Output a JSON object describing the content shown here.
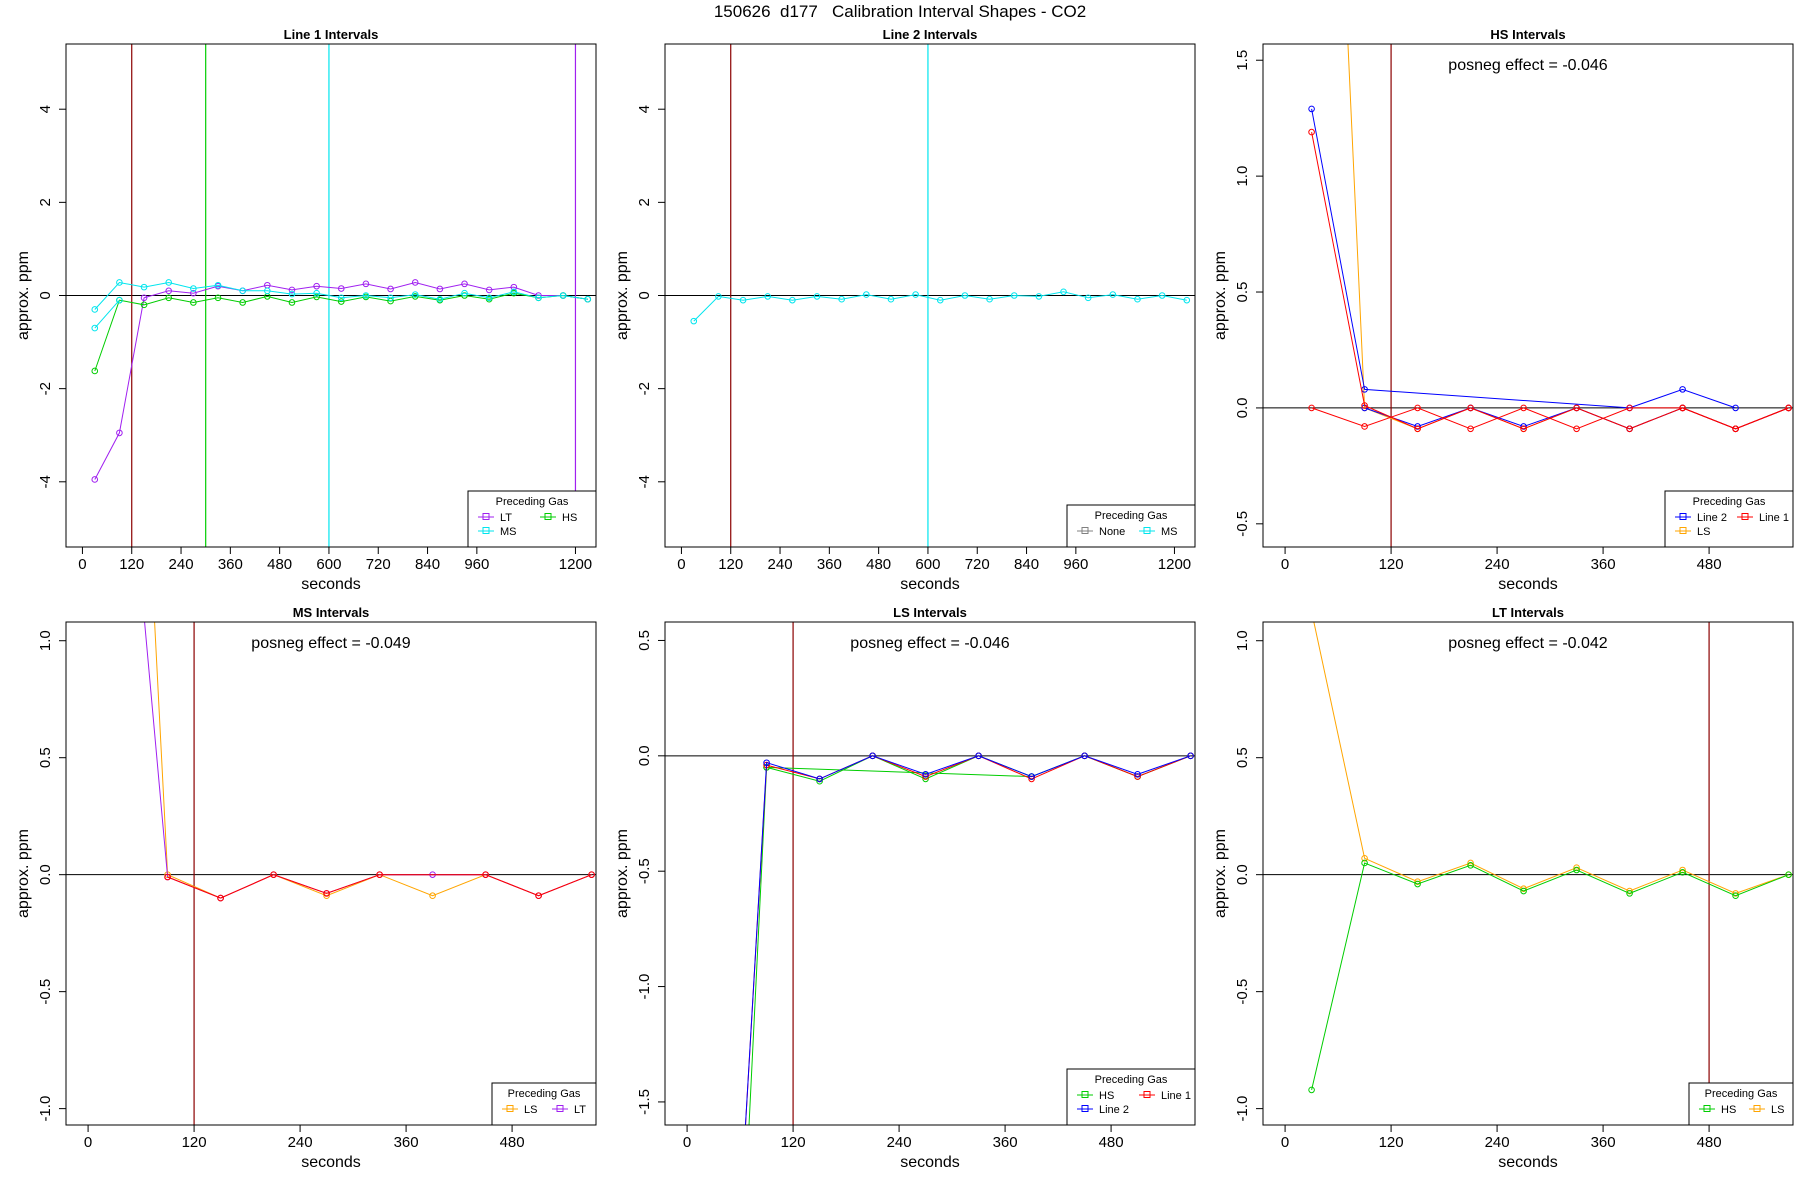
{
  "figure_title": "150626  d177   Calibration Interval Shapes - CO2",
  "colors": {
    "LT": "#A020F0",
    "HS": "#00CD00",
    "MS": "#00E5EE",
    "LS": "#FFA500",
    "Line 1": "#FF0000",
    "Line 2": "#0000FF",
    "None": "#808080",
    "marker_line": "#8B0000",
    "axis": "#000000"
  },
  "chart_data": [
    {
      "type": "line",
      "title": "Line 1 Intervals",
      "xlabel": "seconds",
      "ylabel": "approx. ppm",
      "xlim": [
        -40,
        1250
      ],
      "ylim": [
        -5.4,
        5.4
      ],
      "xticks": [
        0,
        120,
        240,
        360,
        480,
        600,
        720,
        840,
        960,
        1200
      ],
      "yticks": [
        -4,
        -2,
        0,
        2,
        4
      ],
      "vlines": [
        {
          "x": 120,
          "color": "marker_line"
        },
        {
          "x": 300,
          "color": "HS"
        },
        {
          "x": 600,
          "color": "MS"
        },
        {
          "x": 1200,
          "color": "LT"
        }
      ],
      "annotation": "",
      "legend": {
        "title": "Preceding Gas",
        "position": "bottom-right",
        "entries": [
          "LT",
          "HS",
          "MS"
        ],
        "cols": 2
      },
      "series": [
        {
          "name": "LT",
          "color": "LT",
          "x": [
            30,
            90,
            150,
            210,
            270,
            330,
            390,
            450,
            510,
            570,
            630,
            690,
            750,
            810,
            870,
            930,
            990,
            1050,
            1110,
            1170,
            1230
          ],
          "y": [
            -3.95,
            -2.95,
            -0.05,
            0.1,
            0.05,
            0.2,
            0.1,
            0.22,
            0.12,
            0.2,
            0.15,
            0.25,
            0.14,
            0.28,
            0.14,
            0.25,
            0.12,
            0.18,
            0.0,
            0.0,
            -0.08
          ]
        },
        {
          "name": "HS",
          "color": "HS",
          "x": [
            30,
            90,
            150,
            210,
            270,
            330,
            390,
            450,
            510,
            570,
            630,
            690,
            750,
            810,
            870,
            930,
            990,
            1050,
            1110,
            1170,
            1230
          ],
          "y": [
            -1.62,
            -0.1,
            -0.2,
            -0.05,
            -0.15,
            -0.05,
            -0.15,
            -0.02,
            -0.15,
            -0.03,
            -0.13,
            -0.03,
            -0.12,
            -0.02,
            -0.1,
            0.0,
            -0.08,
            0.05,
            -0.05,
            0.0,
            -0.08
          ]
        },
        {
          "name": "MS",
          "color": "MS",
          "x": [
            30,
            90,
            150,
            210,
            270,
            330,
            390,
            450,
            510,
            570,
            630,
            690,
            750,
            810,
            870,
            930,
            990,
            1050,
            1110,
            1170,
            1230
          ],
          "y": [
            -0.3,
            0.28,
            0.18,
            0.28,
            0.15,
            0.22,
            0.1,
            0.1,
            0.03,
            0.05,
            -0.05,
            0.0,
            -0.05,
            0.02,
            -0.08,
            0.05,
            -0.05,
            0.08,
            -0.05,
            0.0,
            -0.08
          ]
        },
        {
          "name": "",
          "color": "MS",
          "x": [
            30,
            90
          ],
          "y": [
            -0.7,
            -0.1
          ]
        }
      ]
    },
    {
      "type": "line",
      "title": "Line 2 Intervals",
      "xlabel": "seconds",
      "ylabel": "approx. ppm",
      "xlim": [
        -40,
        1250
      ],
      "ylim": [
        -5.4,
        5.4
      ],
      "xticks": [
        0,
        120,
        240,
        360,
        480,
        600,
        720,
        840,
        960,
        1200
      ],
      "yticks": [
        -4,
        -2,
        0,
        2,
        4
      ],
      "vlines": [
        {
          "x": 120,
          "color": "marker_line"
        },
        {
          "x": 600,
          "color": "MS"
        }
      ],
      "annotation": "",
      "legend": {
        "title": "Preceding Gas",
        "position": "bottom-right",
        "entries": [
          "None",
          "MS"
        ],
        "cols": 2
      },
      "series": [
        {
          "name": "MS",
          "color": "MS",
          "x": [
            30,
            90,
            150,
            210,
            270,
            330,
            390,
            450,
            510,
            570,
            630,
            690,
            750,
            810,
            870,
            930,
            990,
            1050,
            1110,
            1170,
            1230
          ],
          "y": [
            -0.55,
            -0.02,
            -0.1,
            -0.02,
            -0.1,
            -0.02,
            -0.08,
            0.02,
            -0.08,
            0.02,
            -0.1,
            0.0,
            -0.08,
            0.0,
            -0.02,
            0.08,
            -0.05,
            0.02,
            -0.08,
            0.0,
            -0.1
          ]
        }
      ]
    },
    {
      "type": "line",
      "title": "HS Intervals",
      "xlabel": "seconds",
      "ylabel": "approx. ppm",
      "xlim": [
        -25,
        575
      ],
      "ylim": [
        -0.6,
        1.57
      ],
      "xticks": [
        0,
        120,
        240,
        360,
        480
      ],
      "yticks": [
        -0.5,
        0.0,
        0.5,
        1.0,
        1.5
      ],
      "vlines": [
        {
          "x": 120,
          "color": "marker_line"
        }
      ],
      "annotation": "posneg effect = -0.046",
      "legend": {
        "title": "Preceding Gas",
        "position": "bottom-right",
        "entries": [
          "Line 2",
          "Line 1",
          "LS"
        ],
        "cols": 2
      },
      "series": [
        {
          "name": "LS",
          "color": "LS",
          "x": [
            60,
            90,
            150,
            210,
            270,
            330,
            390,
            450,
            510,
            570
          ],
          "y": [
            2.5,
            0.0,
            -0.09,
            0.0,
            -0.09,
            0.0,
            -0.09,
            0.0,
            -0.09,
            0.0
          ]
        },
        {
          "name": "Line 2",
          "color": "Line 2",
          "x": [
            30,
            90,
            390,
            450,
            510
          ],
          "y": [
            1.29,
            0.08,
            0.0,
            0.08,
            0.0
          ]
        },
        {
          "name": "Line 2",
          "color": "Line 2",
          "x": [
            90,
            150,
            210,
            270,
            330,
            390,
            450,
            510,
            570
          ],
          "y": [
            0.0,
            -0.08,
            0.0,
            -0.08,
            0.0,
            -0.09,
            0.0,
            -0.09,
            0.0
          ]
        },
        {
          "name": "Line 1",
          "color": "Line 1",
          "x": [
            30,
            90,
            150,
            210,
            270,
            330,
            390,
            450,
            510,
            570
          ],
          "y": [
            1.19,
            0.01,
            -0.09,
            0.0,
            -0.09,
            0.0,
            -0.09,
            0.0,
            -0.09,
            0.0
          ]
        },
        {
          "name": "Line 1",
          "color": "Line 1",
          "x": [
            30,
            90,
            150,
            210,
            270,
            330,
            390,
            450,
            510,
            570
          ],
          "y": [
            0.0,
            -0.08,
            0.0,
            -0.09,
            0.0,
            -0.09,
            0.0,
            0.0,
            -0.09,
            0.0
          ]
        }
      ]
    },
    {
      "type": "line",
      "title": "MS Intervals",
      "xlabel": "seconds",
      "ylabel": "approx. ppm",
      "xlim": [
        -25,
        575
      ],
      "ylim": [
        -1.07,
        1.08
      ],
      "xticks": [
        0,
        120,
        240,
        360,
        480
      ],
      "yticks": [
        -1.0,
        -0.5,
        0.0,
        0.5,
        1.0
      ],
      "vlines": [
        {
          "x": 120,
          "color": "marker_line"
        }
      ],
      "annotation": "posneg effect = -0.049",
      "legend": {
        "title": "Preceding Gas",
        "position": "bottom-right",
        "entries": [
          "LS",
          "LT"
        ],
        "cols": 2
      },
      "series": [
        {
          "name": "LS",
          "color": "LS",
          "x": [
            60,
            90,
            150,
            210,
            270,
            330,
            390,
            450,
            510,
            570
          ],
          "y": [
            2.2,
            0.0,
            -0.1,
            0.0,
            -0.09,
            0.0,
            -0.09,
            0.0,
            -0.09,
            0.0
          ]
        },
        {
          "name": "LT",
          "color": "LT",
          "x": [
            30,
            90,
            150,
            210,
            270,
            330,
            390,
            450,
            510,
            570
          ],
          "y": [
            2.5,
            -0.01,
            -0.1,
            0.0,
            -0.08,
            0.0,
            0.0,
            0.0,
            -0.09,
            0.0
          ]
        },
        {
          "name": "",
          "color": "Line 1",
          "x": [
            90,
            150,
            210,
            270,
            330,
            450,
            510,
            570
          ],
          "y": [
            -0.01,
            -0.1,
            0.0,
            -0.08,
            0.0,
            0.0,
            -0.09,
            0.0
          ]
        }
      ]
    },
    {
      "type": "line",
      "title": "LS Intervals",
      "xlabel": "seconds",
      "ylabel": "approx. ppm",
      "xlim": [
        -25,
        575
      ],
      "ylim": [
        -1.6,
        0.58
      ],
      "xticks": [
        0,
        120,
        240,
        360,
        480
      ],
      "yticks": [
        -1.5,
        -1.0,
        -0.5,
        0.0,
        0.5
      ],
      "vlines": [
        {
          "x": 120,
          "color": "marker_line"
        }
      ],
      "annotation": "posneg effect = -0.046",
      "legend": {
        "title": "Preceding Gas",
        "position": "bottom-right",
        "entries": [
          "HS",
          "Line 1",
          "Line 2"
        ],
        "cols": 2
      },
      "series": [
        {
          "name": "HS",
          "color": "HS",
          "x": [
            65,
            90,
            390,
            450,
            510,
            570
          ],
          "y": [
            -2.0,
            -0.05,
            -0.09,
            0.0,
            -0.09,
            0.0
          ]
        },
        {
          "name": "HS",
          "color": "HS",
          "x": [
            90,
            150,
            210,
            270,
            330,
            390
          ],
          "y": [
            -0.05,
            -0.11,
            0.0,
            -0.1,
            0.0,
            -0.09
          ]
        },
        {
          "name": "Line 1",
          "color": "Line 1",
          "x": [
            60,
            90,
            150,
            210,
            270,
            330,
            390,
            450,
            510,
            570
          ],
          "y": [
            -2.0,
            -0.04,
            -0.1,
            0.0,
            -0.09,
            0.0,
            -0.1,
            0.0,
            -0.09,
            0.0
          ]
        },
        {
          "name": "Line 2",
          "color": "Line 2",
          "x": [
            60,
            90,
            150,
            210,
            270,
            330,
            390,
            450,
            510,
            570
          ],
          "y": [
            -2.0,
            -0.03,
            -0.1,
            0.0,
            -0.08,
            0.0,
            -0.09,
            0.0,
            -0.08,
            0.0
          ]
        }
      ]
    },
    {
      "type": "line",
      "title": "LT Intervals",
      "xlabel": "seconds",
      "ylabel": "approx. ppm",
      "xlim": [
        -25,
        575
      ],
      "ylim": [
        -1.07,
        1.08
      ],
      "xticks": [
        0,
        120,
        240,
        360,
        480
      ],
      "yticks": [
        -1.0,
        -0.5,
        0.0,
        0.5,
        1.0
      ],
      "vlines": [
        {
          "x": 480,
          "color": "marker_line"
        }
      ],
      "annotation": "posneg effect = -0.042",
      "legend": {
        "title": "Preceding Gas",
        "position": "bottom-right",
        "entries": [
          "HS",
          "LS"
        ],
        "cols": 2
      },
      "series": [
        {
          "name": "LS",
          "color": "LS",
          "x": [
            20,
            90,
            150,
            210,
            270,
            330,
            390,
            450,
            510,
            570
          ],
          "y": [
            1.3,
            0.07,
            -0.03,
            0.05,
            -0.06,
            0.03,
            -0.07,
            0.02,
            -0.08,
            0.0
          ]
        },
        {
          "name": "HS",
          "color": "HS",
          "x": [
            30,
            90,
            150,
            210,
            270,
            330,
            390,
            450,
            510,
            570
          ],
          "y": [
            -0.92,
            0.05,
            -0.04,
            0.04,
            -0.07,
            0.02,
            -0.08,
            0.01,
            -0.09,
            0.0
          ]
        }
      ]
    }
  ]
}
